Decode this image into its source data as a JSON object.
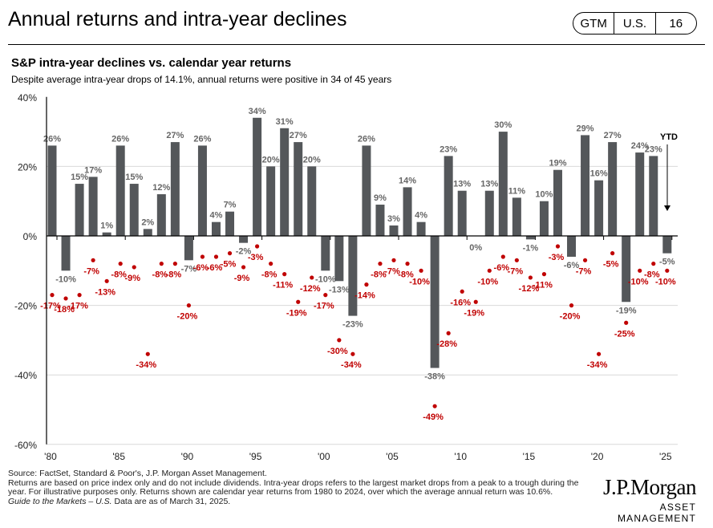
{
  "header": {
    "title": "Annual returns and intra-year declines",
    "badge": [
      "GTM",
      "U.S.",
      "16"
    ]
  },
  "subtitle": "S&P intra-year declines vs. calendar year returns",
  "description": "Despite average intra-year drops of 14.1%, annual returns were positive in 34 of 45 years",
  "chart_data": {
    "type": "bar",
    "ylim": [
      -60,
      40
    ],
    "yticks": [
      "40%",
      "20%",
      "0%",
      "-20%",
      "-40%",
      "-60%"
    ],
    "yticks_values": [
      40,
      20,
      0,
      -20,
      -40,
      -60
    ],
    "xtick_labels": [
      "'80",
      "'85",
      "'90",
      "'95",
      "'00",
      "'05",
      "'10",
      "'15",
      "'20",
      "'25"
    ],
    "years": [
      1980,
      1981,
      1982,
      1983,
      1984,
      1985,
      1986,
      1987,
      1988,
      1989,
      1990,
      1991,
      1992,
      1993,
      1994,
      1995,
      1996,
      1997,
      1998,
      1999,
      2000,
      2001,
      2002,
      2003,
      2004,
      2005,
      2006,
      2007,
      2008,
      2009,
      2010,
      2011,
      2012,
      2013,
      2014,
      2015,
      2016,
      2017,
      2018,
      2019,
      2020,
      2021,
      2022,
      2023,
      2024,
      2025
    ],
    "series": [
      {
        "type": "bar",
        "color": "#54575a",
        "values": [
          26,
          -10,
          15,
          17,
          1,
          26,
          15,
          2,
          12,
          27,
          -7,
          26,
          4,
          7,
          -2,
          34,
          20,
          31,
          27,
          20,
          -10,
          -13,
          -23,
          26,
          9,
          3,
          14,
          4,
          -38,
          23,
          13,
          0,
          13,
          30,
          11,
          -1,
          10,
          19,
          -6,
          29,
          16,
          27,
          -19,
          24,
          23,
          -5
        ]
      },
      {
        "type": "scatter",
        "color": "#c00000",
        "values": [
          -17,
          -18,
          -17,
          -7,
          -13,
          -8,
          -9,
          -34,
          -8,
          -8,
          -20,
          -6,
          -6,
          -5,
          -9,
          -3,
          -8,
          -11,
          -19,
          -12,
          -17,
          -30,
          -34,
          -14,
          -8,
          -7,
          -8,
          -10,
          -49,
          -28,
          -16,
          -19,
          -10,
          -6,
          -7,
          -12,
          -11,
          -3,
          -20,
          -7,
          -34,
          -5,
          -25,
          -10,
          -8,
          -10
        ]
      }
    ],
    "annotation": "YTD"
  },
  "footer": {
    "lines": [
      "Source: FactSet, Standard & Poor's, J.P. Morgan Asset Management.",
      "Returns are based on price index only and do not include dividends. Intra-year drops refers to the largest market drops from a peak to a trough during the year. For illustrative purposes only. Returns shown are calendar year returns from 1980 to 2024, over which the average annual return was 10.6%."
    ],
    "guide": "Guide to the Markets – U.S.",
    "date": " Data are as of March 31, 2025."
  },
  "logo": {
    "name": "J.P.Morgan",
    "tagline": "ASSET MANAGEMENT"
  }
}
